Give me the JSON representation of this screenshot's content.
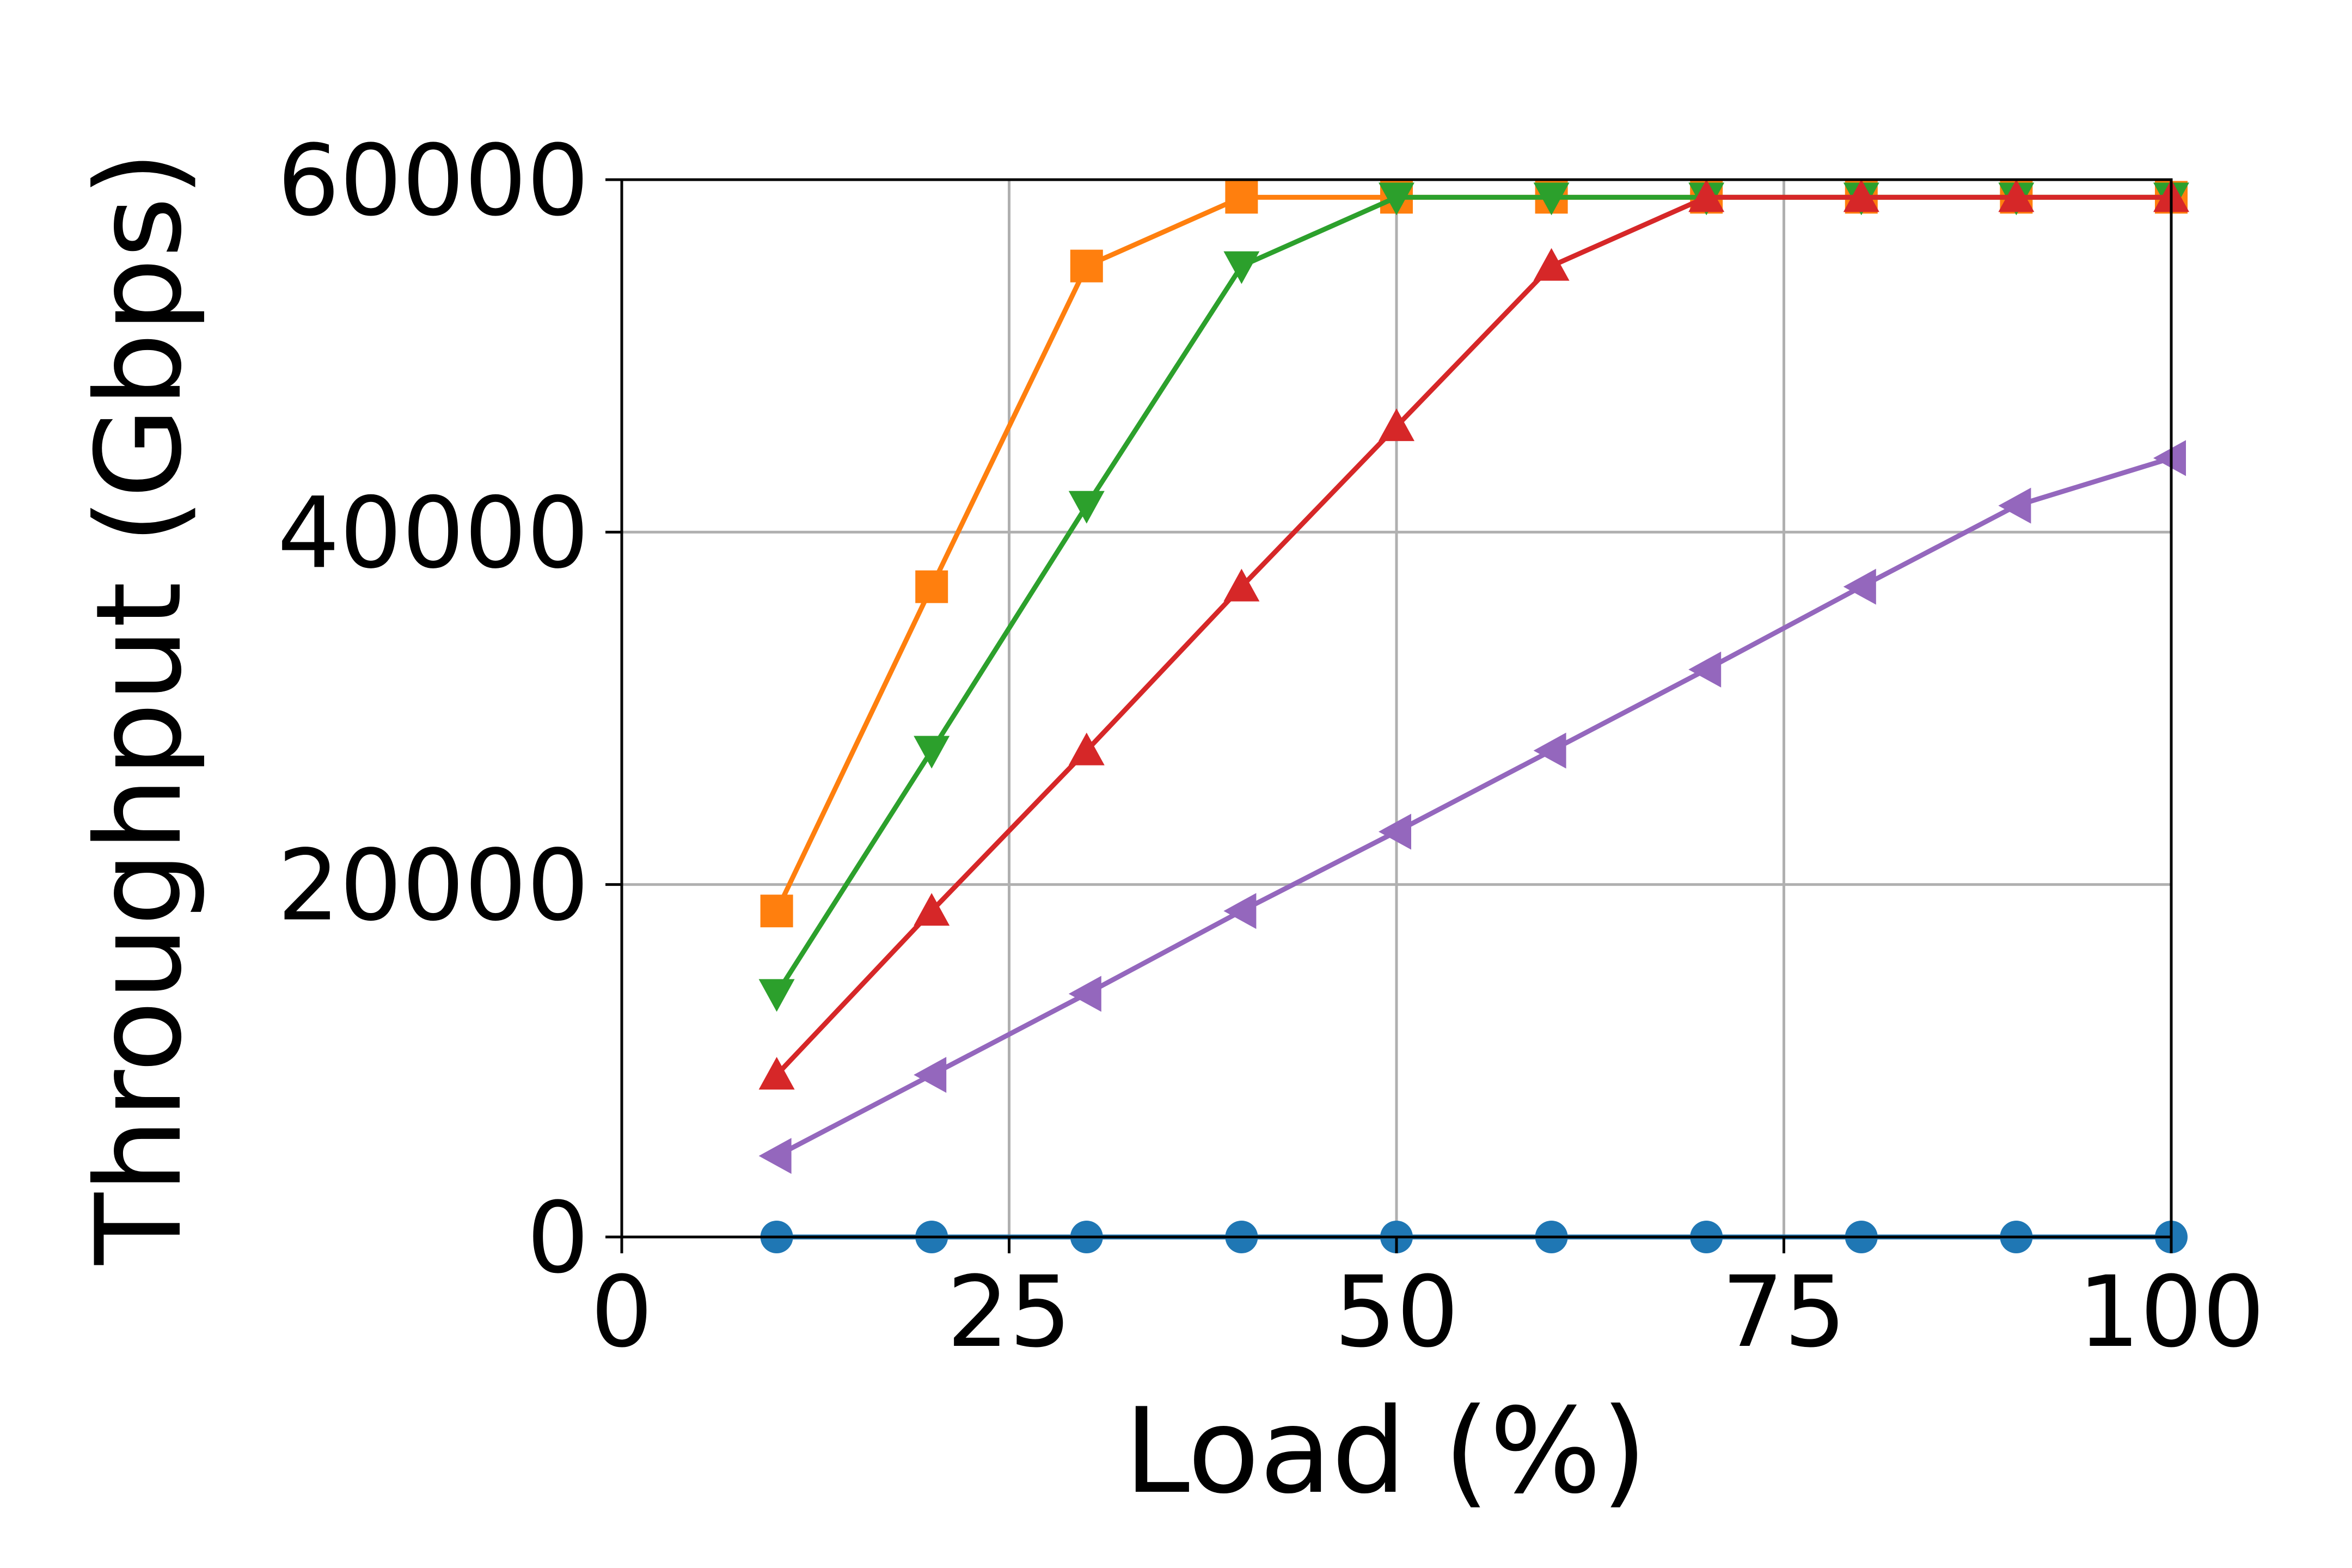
{
  "chart_data": {
    "type": "line",
    "title": "",
    "xlabel": "Load (%)",
    "ylabel": "Throughput (Gbps)",
    "xlim": [
      0,
      100
    ],
    "ylim": [
      0,
      60000
    ],
    "xticks": [
      0,
      25,
      50,
      75,
      100
    ],
    "yticks": [
      0,
      20000,
      40000,
      60000
    ],
    "xtick_labels": [
      "0",
      "25",
      "50",
      "75",
      "100"
    ],
    "ytick_labels": [
      "0",
      "20000",
      "40000",
      "60000"
    ],
    "grid": true,
    "legend": "none",
    "x": [
      10,
      20,
      30,
      40,
      50,
      60,
      70,
      80,
      90,
      100
    ],
    "series": [
      {
        "marker": "circle",
        "color": "#1f77b4",
        "values": [
          0,
          0,
          0,
          0,
          0,
          0,
          0,
          0,
          0,
          0
        ]
      },
      {
        "marker": "square",
        "color": "#ff7f0e",
        "values": [
          18500,
          36900,
          55100,
          59000,
          59000,
          59000,
          59000,
          59000,
          59000,
          59000
        ]
      },
      {
        "marker": "triangle-down",
        "color": "#2ca02c",
        "values": [
          13800,
          27600,
          41500,
          55100,
          59000,
          59000,
          59000,
          59000,
          59000,
          59000
        ]
      },
      {
        "marker": "triangle-up",
        "color": "#d62728",
        "values": [
          9200,
          18500,
          27600,
          36900,
          46000,
          55100,
          59000,
          59000,
          59000,
          59000
        ]
      },
      {
        "marker": "triangle-left",
        "color": "#9467bd",
        "values": [
          4600,
          9200,
          13800,
          18500,
          23000,
          27600,
          32200,
          36900,
          41500,
          44200
        ]
      }
    ]
  }
}
